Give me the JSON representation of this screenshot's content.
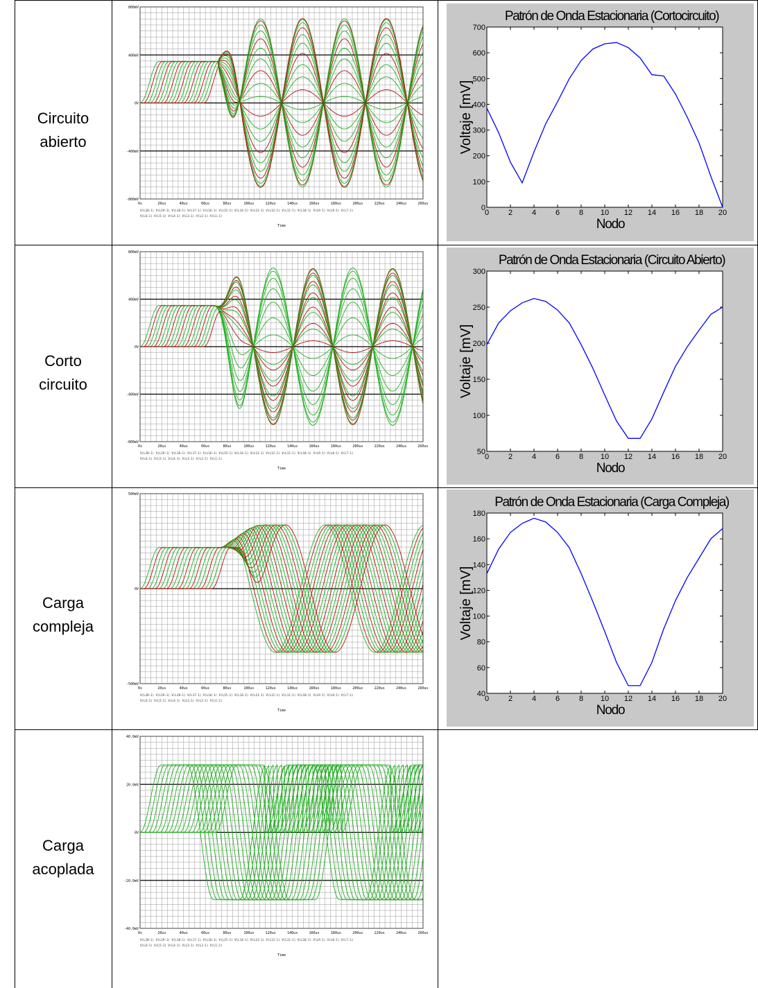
{
  "rows": [
    {
      "label_line1": "Circuito",
      "label_line2": "abierto"
    },
    {
      "label_line1": "Corto",
      "label_line2": "circuito"
    },
    {
      "label_line1": "Carga",
      "label_line2": "compleja"
    },
    {
      "label_line1": "Carga",
      "label_line2": "acoplada"
    }
  ],
  "sim_common": {
    "x_tick_labels": [
      "0s",
      "20us",
      "40us",
      "60us",
      "80us",
      "100us",
      "120us",
      "140us",
      "160us",
      "180us",
      "200us",
      "220us",
      "240us",
      "260us"
    ],
    "x_axis_title": "Time",
    "legend_line1": "V(L20:1) V(L19:1) V(L18:1) V(L17:1) V(L16:1) V(L15:1) V(L14:1) V(L13:1) V(L12:1) V(L11:1) V(L10:1) V(L9:1) V(L8:1) V(L7:1)",
    "legend_line2": "V(L6:1) V(L5:1) V(L4:1) V(L3:1) V(L2:1) V(L1:1)",
    "colors": {
      "green": "#1fb01f",
      "red": "#b01010"
    }
  },
  "sims": [
    {
      "y_tick_labels": [
        "800mV",
        "400mV",
        "0V",
        "-400mV",
        "-800mV"
      ]
    },
    {
      "y_tick_labels": [
        "800mV",
        "400mV",
        "0V",
        "-400mV",
        "-800mV"
      ]
    },
    {
      "y_tick_labels": [
        "500mV",
        "0V",
        "-500mV"
      ]
    },
    {
      "y_tick_labels": [
        "40.0mV",
        "20.0mV",
        "0V",
        "-20.0mV",
        "-40.0mV"
      ]
    }
  ],
  "chart_data": [
    {
      "type": "line",
      "title": "Patrón de Onda Estacionaria (Cortocircuito)",
      "xlabel": "Nodo",
      "ylabel": "Voltaje [mV]",
      "xlim": [
        0,
        20
      ],
      "ylim": [
        0,
        700
      ],
      "x_ticks": [
        0,
        2,
        4,
        6,
        8,
        10,
        12,
        14,
        16,
        18,
        20
      ],
      "y_ticks": [
        0,
        100,
        200,
        300,
        400,
        500,
        600,
        700
      ],
      "line_color": "#0000ff",
      "x": [
        0,
        1,
        2,
        3,
        4,
        5,
        6,
        7,
        8,
        9,
        10,
        11,
        12,
        13,
        14,
        15,
        16,
        17,
        18,
        19,
        20
      ],
      "values": [
        385,
        290,
        175,
        95,
        215,
        325,
        410,
        500,
        570,
        615,
        635,
        640,
        620,
        580,
        515,
        510,
        440,
        350,
        250,
        120,
        0
      ]
    },
    {
      "type": "line",
      "title": "Patrón de Onda Estacionaria (Circuito Abierto)",
      "xlabel": "Nodo",
      "ylabel": "Voltaje [mV]",
      "xlim": [
        0,
        20
      ],
      "ylim": [
        50,
        300
      ],
      "x_ticks": [
        0,
        2,
        4,
        6,
        8,
        10,
        12,
        14,
        16,
        18,
        20
      ],
      "y_ticks": [
        50,
        100,
        150,
        200,
        250,
        300
      ],
      "line_color": "#0000ff",
      "x": [
        0,
        1,
        2,
        3,
        4,
        5,
        6,
        7,
        8,
        9,
        10,
        11,
        12,
        13,
        14,
        15,
        16,
        17,
        18,
        19,
        20
      ],
      "values": [
        198,
        228,
        245,
        256,
        262,
        258,
        246,
        228,
        198,
        165,
        128,
        92,
        68,
        68,
        95,
        132,
        168,
        195,
        218,
        240,
        250
      ]
    },
    {
      "type": "line",
      "title": "Patrón de Onda Estacionaria (Carga Compleja)",
      "xlabel": "Nodo",
      "ylabel": "Voltaje [mV]",
      "xlim": [
        0,
        20
      ],
      "ylim": [
        40,
        180
      ],
      "x_ticks": [
        0,
        2,
        4,
        6,
        8,
        10,
        12,
        14,
        16,
        18,
        20
      ],
      "y_ticks": [
        40,
        60,
        80,
        100,
        120,
        140,
        160,
        180
      ],
      "line_color": "#0000ff",
      "x": [
        0,
        1,
        2,
        3,
        4,
        5,
        6,
        7,
        8,
        9,
        10,
        11,
        12,
        13,
        14,
        15,
        16,
        17,
        18,
        19,
        20
      ],
      "values": [
        133,
        152,
        165,
        172,
        176,
        173,
        165,
        153,
        133,
        111,
        88,
        64,
        46,
        46,
        64,
        90,
        112,
        130,
        145,
        160,
        168
      ]
    }
  ]
}
